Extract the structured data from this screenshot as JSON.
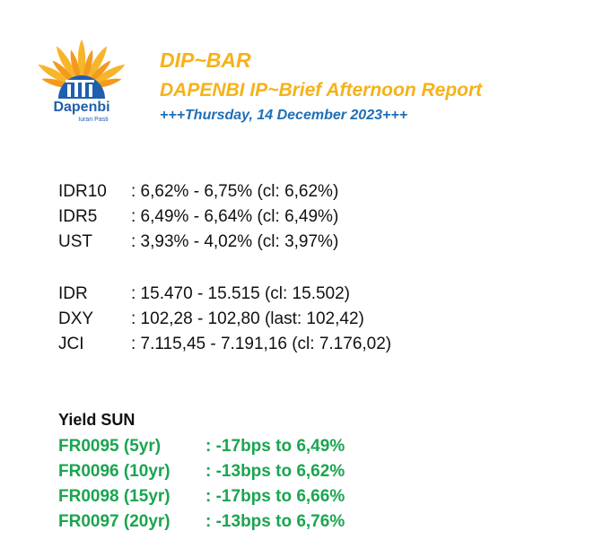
{
  "header": {
    "logo_name": "Dapenbi",
    "logo_tagline": "Iuran Pasti",
    "title": "DIP~BAR",
    "subtitle": "DAPENBI IP~Brief Afternoon Report",
    "date": "+++Thursday, 14 December 2023+++"
  },
  "rates": [
    {
      "label": "IDR10",
      "value": ": 6,62% - 6,75% (cl: 6,62%)"
    },
    {
      "label": "IDR5",
      "value": ": 6,49% - 6,64% (cl: 6,49%)"
    },
    {
      "label": "UST",
      "value": ": 3,93% - 4,02% (cl: 3,97%)"
    }
  ],
  "markets": [
    {
      "label": "IDR",
      "value": ": 15.470 - 15.515 (cl: 15.502)"
    },
    {
      "label": "DXY",
      "value": ": 102,28 - 102,80 (last: 102,42)"
    },
    {
      "label": "JCI",
      "value": ": 7.115,45 - 7.191,16 (cl: 7.176,02)"
    }
  ],
  "yield": {
    "title": "Yield SUN",
    "rows": [
      {
        "label": "FR0095 (5yr)",
        "value": ": -17bps to 6,49%"
      },
      {
        "label": "FR0096 (10yr)",
        "value": ": -13bps to 6,62%"
      },
      {
        "label": "FR0098 (15yr)",
        "value": ": -17bps to 6,66%"
      },
      {
        "label": "FR0097 (20yr)",
        "value": ": -13bps to 6,76%"
      }
    ]
  }
}
